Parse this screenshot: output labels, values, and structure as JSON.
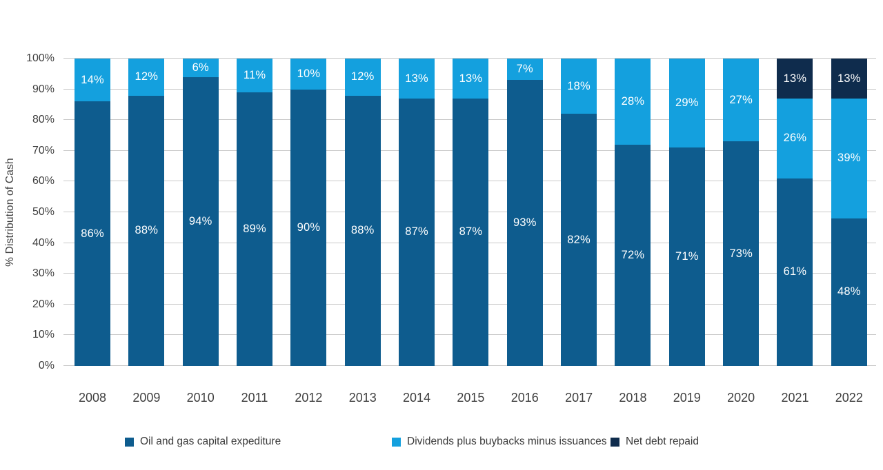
{
  "chart_data": {
    "type": "bar",
    "stacked": true,
    "orientation": "vertical",
    "title": "",
    "xlabel": "",
    "ylabel": "% Distribution of Cash",
    "ylim": [
      0,
      100
    ],
    "grid": true,
    "legend_position": "bottom",
    "value_label_suffix": "%",
    "ytick_labels": [
      "0%",
      "10%",
      "20%",
      "30%",
      "40%",
      "50%",
      "60%",
      "70%",
      "80%",
      "90%",
      "100%"
    ],
    "categories": [
      "2008",
      "2009",
      "2010",
      "2011",
      "2012",
      "2013",
      "2014",
      "2015",
      "2016",
      "2017",
      "2018",
      "2019",
      "2020",
      "2021",
      "2022"
    ],
    "series": [
      {
        "name": "Oil and gas capital expediture",
        "color": "#0e5c8e",
        "values": [
          86,
          88,
          94,
          89,
          90,
          88,
          87,
          87,
          93,
          82,
          72,
          71,
          73,
          61,
          48
        ]
      },
      {
        "name": "Dividends plus buybacks minus issuances",
        "color": "#14a0de",
        "values": [
          14,
          12,
          6,
          11,
          10,
          12,
          13,
          13,
          7,
          18,
          28,
          29,
          27,
          26,
          39
        ]
      },
      {
        "name": "Net debt repaid",
        "color": "#0f2c4d",
        "values": [
          0,
          0,
          0,
          0,
          0,
          0,
          0,
          0,
          0,
          0,
          0,
          0,
          0,
          13,
          13
        ]
      }
    ]
  },
  "style": {
    "gridline_color": "#c9c9c9",
    "axis_text_color": "#3f3f3f",
    "bar_label_color": "#ffffff",
    "background_color": "#ffffff"
  }
}
